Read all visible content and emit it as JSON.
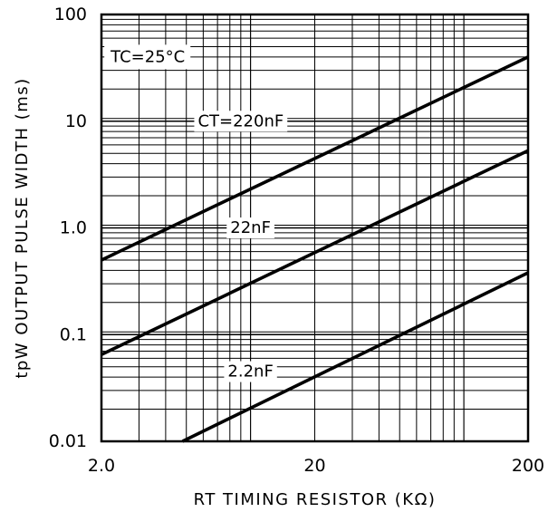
{
  "chart_data": {
    "type": "line",
    "title": "",
    "xlabel": "RT TIMING RESISTOR (KΩ)",
    "ylabel": "tpW OUTPUT PULSE WIDTH (ms)",
    "xscale": "log",
    "yscale": "log",
    "xlim": [
      2,
      200
    ],
    "ylim": [
      0.01,
      100
    ],
    "grid": true,
    "legend": "none",
    "x_ticks": [
      {
        "value": 2,
        "label": "2.0"
      },
      {
        "value": 20,
        "label": "20"
      },
      {
        "value": 200,
        "label": "200"
      }
    ],
    "y_ticks": [
      {
        "value": 0.01,
        "label": "0.01"
      },
      {
        "value": 0.1,
        "label": "0.1"
      },
      {
        "value": 1,
        "label": "1.0"
      },
      {
        "value": 10,
        "label": "10"
      },
      {
        "value": 100,
        "label": "100"
      }
    ],
    "series": [
      {
        "name": "CT=220nF",
        "label_text": "CT=220nF",
        "points": [
          [
            2,
            0.5
          ],
          [
            200,
            40
          ]
        ]
      },
      {
        "name": "22nF",
        "label_text": "22nF",
        "points": [
          [
            2,
            0.065
          ],
          [
            200,
            5.3
          ]
        ]
      },
      {
        "name": "2.2nF",
        "label_text": "2.2nF",
        "points": [
          [
            4.8,
            0.01
          ],
          [
            200,
            0.38
          ]
        ]
      }
    ],
    "annotations": [
      {
        "text": "TC=25°C",
        "x": 3.3,
        "y": 40
      }
    ],
    "line_color": "#000000",
    "grid_color": "#000000"
  }
}
